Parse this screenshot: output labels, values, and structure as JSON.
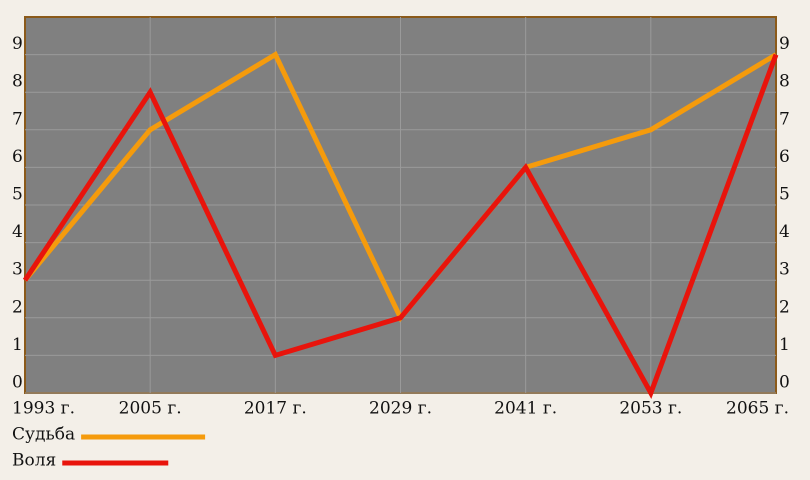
{
  "chart_data": {
    "type": "line",
    "categories": [
      "1993 г.",
      "2005 г.",
      "2017 г.",
      "2029 г.",
      "2041 г.",
      "2053 г.",
      "2065 г."
    ],
    "series": [
      {
        "name": "Судьба",
        "color": "#f59b0c",
        "values": [
          3,
          7,
          9,
          2,
          6,
          7,
          9
        ]
      },
      {
        "name": "Воля",
        "color": "#e8140c",
        "values": [
          3,
          8,
          1,
          2,
          6,
          0,
          9
        ]
      }
    ],
    "ylim": [
      0,
      10
    ],
    "yticks": [
      0,
      1,
      2,
      3,
      4,
      5,
      6,
      7,
      8,
      9
    ],
    "grid": true
  }
}
